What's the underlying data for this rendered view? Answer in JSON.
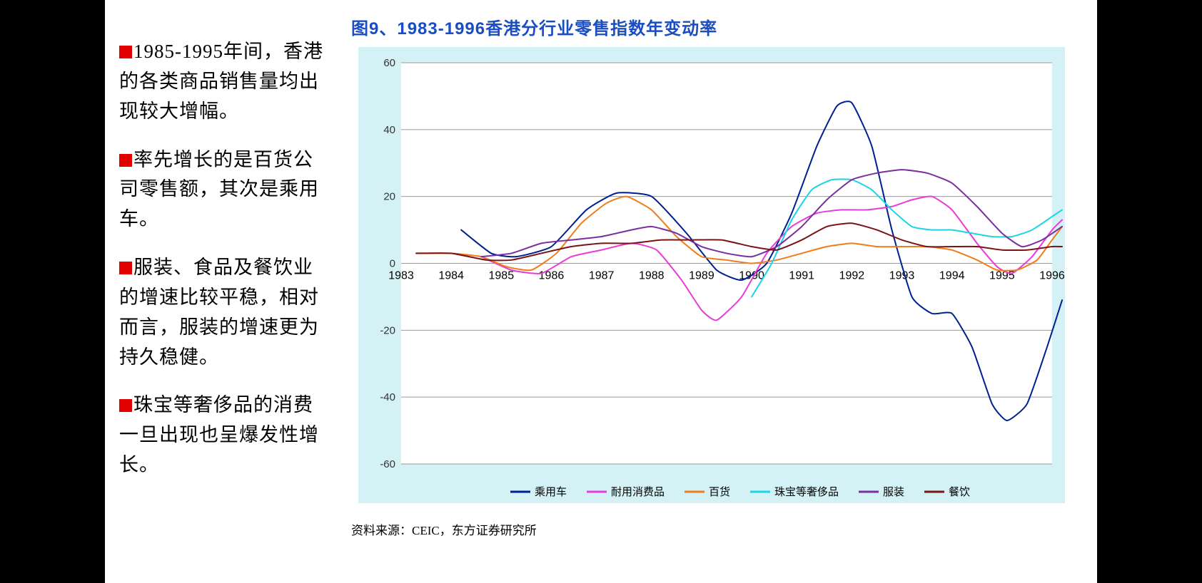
{
  "sidebar": {
    "paragraphs": [
      "1985-1995年间，香港的各类商品销售量均出现较大增幅。",
      "率先增长的是百货公司零售额，其次是乘用车。",
      "服装、食品及餐饮业的增速比较平稳，相对而言，服装的增速更为持久稳健。",
      "珠宝等奢侈品的消费一旦出现也呈爆发性增长。"
    ],
    "bullet_color": "#e20000"
  },
  "chart": {
    "type": "line",
    "title": "图9、1983-1996香港分行业零售指数年变动率",
    "title_color": "#1a4cc2",
    "title_fontsize": 24,
    "outer_bg": "#d4f2f6",
    "plot_bg": "#ffffff",
    "gridline_color": "#9a9a9a",
    "x_years": [
      1983,
      1984,
      1985,
      1986,
      1987,
      1988,
      1989,
      1990,
      1991,
      1992,
      1993,
      1994,
      1995,
      1996
    ],
    "x_label_fontsize": 16,
    "ylim": [
      -60,
      60
    ],
    "ytick_step": 20,
    "y_label_fontsize": 15,
    "y_label_color": "#333333",
    "line_width": 2,
    "smoothing": 0.5,
    "series": [
      {
        "name": "乘用车",
        "color": "#001f8f",
        "data": [
          {
            "x": 1984.2,
            "y": 10
          },
          {
            "x": 1984.8,
            "y": 3
          },
          {
            "x": 1985.3,
            "y": 2
          },
          {
            "x": 1986,
            "y": 5
          },
          {
            "x": 1986.7,
            "y": 16
          },
          {
            "x": 1987.3,
            "y": 21
          },
          {
            "x": 1988,
            "y": 20
          },
          {
            "x": 1988.7,
            "y": 9
          },
          {
            "x": 1989.3,
            "y": -2
          },
          {
            "x": 1989.8,
            "y": -5
          },
          {
            "x": 1990.3,
            "y": 0
          },
          {
            "x": 1990.8,
            "y": 15
          },
          {
            "x": 1991.3,
            "y": 35
          },
          {
            "x": 1991.7,
            "y": 47
          },
          {
            "x": 1992,
            "y": 48
          },
          {
            "x": 1992.4,
            "y": 35
          },
          {
            "x": 1992.8,
            "y": 10
          },
          {
            "x": 1993.2,
            "y": -10
          },
          {
            "x": 1993.6,
            "y": -15
          },
          {
            "x": 1994,
            "y": -15
          },
          {
            "x": 1994.4,
            "y": -25
          },
          {
            "x": 1994.8,
            "y": -42
          },
          {
            "x": 1995.1,
            "y": -47
          },
          {
            "x": 1995.5,
            "y": -42
          },
          {
            "x": 1995.9,
            "y": -25
          },
          {
            "x": 1996.2,
            "y": -11
          }
        ]
      },
      {
        "name": "耐用消费品",
        "color": "#e83bd7",
        "data": [
          {
            "x": 1984.6,
            "y": 2
          },
          {
            "x": 1985.2,
            "y": -2
          },
          {
            "x": 1985.8,
            "y": -3
          },
          {
            "x": 1986.4,
            "y": 2
          },
          {
            "x": 1987,
            "y": 4
          },
          {
            "x": 1987.6,
            "y": 6
          },
          {
            "x": 1988.1,
            "y": 4
          },
          {
            "x": 1988.6,
            "y": -5
          },
          {
            "x": 1989,
            "y": -14
          },
          {
            "x": 1989.3,
            "y": -17
          },
          {
            "x": 1989.8,
            "y": -10
          },
          {
            "x": 1990.3,
            "y": 3
          },
          {
            "x": 1990.8,
            "y": 11
          },
          {
            "x": 1991.3,
            "y": 15
          },
          {
            "x": 1991.8,
            "y": 16
          },
          {
            "x": 1992.3,
            "y": 16
          },
          {
            "x": 1992.8,
            "y": 17
          },
          {
            "x": 1993.2,
            "y": 19
          },
          {
            "x": 1993.6,
            "y": 20
          },
          {
            "x": 1994,
            "y": 16
          },
          {
            "x": 1994.5,
            "y": 6
          },
          {
            "x": 1994.9,
            "y": -1
          },
          {
            "x": 1995.2,
            "y": -3
          },
          {
            "x": 1995.6,
            "y": 2
          },
          {
            "x": 1996,
            "y": 10
          },
          {
            "x": 1996.2,
            "y": 13
          }
        ]
      },
      {
        "name": "百货",
        "color": "#ee7d1a",
        "data": [
          {
            "x": 1983.3,
            "y": 3
          },
          {
            "x": 1984,
            "y": 3
          },
          {
            "x": 1984.6,
            "y": 2
          },
          {
            "x": 1985.1,
            "y": -1
          },
          {
            "x": 1985.6,
            "y": -2
          },
          {
            "x": 1986.1,
            "y": 3
          },
          {
            "x": 1986.6,
            "y": 12
          },
          {
            "x": 1987.1,
            "y": 18
          },
          {
            "x": 1987.5,
            "y": 20
          },
          {
            "x": 1988,
            "y": 16
          },
          {
            "x": 1988.5,
            "y": 8
          },
          {
            "x": 1989,
            "y": 2
          },
          {
            "x": 1989.5,
            "y": 1
          },
          {
            "x": 1990,
            "y": 0
          },
          {
            "x": 1990.5,
            "y": 1
          },
          {
            "x": 1991,
            "y": 3
          },
          {
            "x": 1991.5,
            "y": 5
          },
          {
            "x": 1992,
            "y": 6
          },
          {
            "x": 1992.5,
            "y": 5
          },
          {
            "x": 1993,
            "y": 5
          },
          {
            "x": 1993.5,
            "y": 5
          },
          {
            "x": 1994,
            "y": 4
          },
          {
            "x": 1994.5,
            "y": 1
          },
          {
            "x": 1994.9,
            "y": -2
          },
          {
            "x": 1995.3,
            "y": -2
          },
          {
            "x": 1995.7,
            "y": 1
          },
          {
            "x": 1996,
            "y": 7
          },
          {
            "x": 1996.2,
            "y": 11
          }
        ]
      },
      {
        "name": "珠宝等奢侈品",
        "color": "#1bd4e4",
        "data": [
          {
            "x": 1990,
            "y": -10
          },
          {
            "x": 1990.4,
            "y": 0
          },
          {
            "x": 1990.8,
            "y": 13
          },
          {
            "x": 1991.2,
            "y": 22
          },
          {
            "x": 1991.6,
            "y": 25
          },
          {
            "x": 1992,
            "y": 25
          },
          {
            "x": 1992.4,
            "y": 22
          },
          {
            "x": 1992.8,
            "y": 16
          },
          {
            "x": 1993.2,
            "y": 11
          },
          {
            "x": 1993.6,
            "y": 10
          },
          {
            "x": 1994,
            "y": 10
          },
          {
            "x": 1994.4,
            "y": 9
          },
          {
            "x": 1994.8,
            "y": 8
          },
          {
            "x": 1995.2,
            "y": 8
          },
          {
            "x": 1995.6,
            "y": 10
          },
          {
            "x": 1996,
            "y": 14
          },
          {
            "x": 1996.2,
            "y": 16
          }
        ]
      },
      {
        "name": "服装",
        "color": "#7a2fa0",
        "data": [
          {
            "x": 1984.6,
            "y": 2
          },
          {
            "x": 1985.2,
            "y": 3
          },
          {
            "x": 1985.8,
            "y": 6
          },
          {
            "x": 1986.4,
            "y": 7
          },
          {
            "x": 1987,
            "y": 8
          },
          {
            "x": 1987.6,
            "y": 10
          },
          {
            "x": 1988,
            "y": 11
          },
          {
            "x": 1988.5,
            "y": 9
          },
          {
            "x": 1989,
            "y": 5
          },
          {
            "x": 1989.5,
            "y": 3
          },
          {
            "x": 1990,
            "y": 2
          },
          {
            "x": 1990.5,
            "y": 5
          },
          {
            "x": 1991,
            "y": 11
          },
          {
            "x": 1991.5,
            "y": 19
          },
          {
            "x": 1992,
            "y": 25
          },
          {
            "x": 1992.5,
            "y": 27
          },
          {
            "x": 1993,
            "y": 28
          },
          {
            "x": 1993.5,
            "y": 27
          },
          {
            "x": 1994,
            "y": 24
          },
          {
            "x": 1994.5,
            "y": 17
          },
          {
            "x": 1995,
            "y": 9
          },
          {
            "x": 1995.4,
            "y": 5
          },
          {
            "x": 1995.8,
            "y": 7
          },
          {
            "x": 1996.2,
            "y": 11
          }
        ]
      },
      {
        "name": "餐饮",
        "color": "#7a1414",
        "data": [
          {
            "x": 1983.3,
            "y": 3
          },
          {
            "x": 1984,
            "y": 3
          },
          {
            "x": 1984.7,
            "y": 1
          },
          {
            "x": 1985.2,
            "y": 1
          },
          {
            "x": 1985.8,
            "y": 3
          },
          {
            "x": 1986.4,
            "y": 5
          },
          {
            "x": 1987,
            "y": 6
          },
          {
            "x": 1987.6,
            "y": 6
          },
          {
            "x": 1988.2,
            "y": 7
          },
          {
            "x": 1988.8,
            "y": 7
          },
          {
            "x": 1989.4,
            "y": 7
          },
          {
            "x": 1990,
            "y": 5
          },
          {
            "x": 1990.5,
            "y": 4
          },
          {
            "x": 1991,
            "y": 7
          },
          {
            "x": 1991.5,
            "y": 11
          },
          {
            "x": 1992,
            "y": 12
          },
          {
            "x": 1992.5,
            "y": 10
          },
          {
            "x": 1993,
            "y": 7
          },
          {
            "x": 1993.5,
            "y": 5
          },
          {
            "x": 1994,
            "y": 5
          },
          {
            "x": 1994.5,
            "y": 5
          },
          {
            "x": 1995,
            "y": 4
          },
          {
            "x": 1995.5,
            "y": 4
          },
          {
            "x": 1996,
            "y": 5
          },
          {
            "x": 1996.2,
            "y": 5
          }
        ]
      }
    ],
    "legend": {
      "fontsize": 15,
      "text_color": "#000000",
      "dash_len": 28,
      "gap": 28
    }
  },
  "source": {
    "label": "资料来源：",
    "text": "CEIC，东方证券研究所"
  }
}
